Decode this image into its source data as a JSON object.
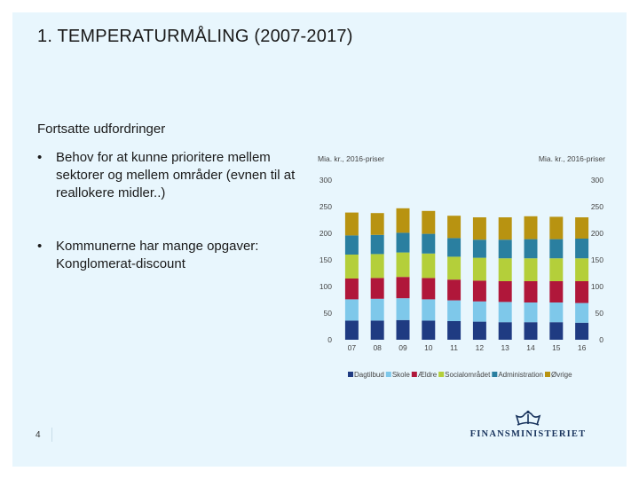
{
  "slide": {
    "title": "1. TEMPERATURMÅLING (2007-2017)",
    "subheading": "Fortsatte udfordringer",
    "bullets": [
      "Behov for at kunne prioritere mellem sektorer og mellem områder (evnen til at reallokere midler..)",
      "Kommunerne har mange opgaver: Konglomerat-discount"
    ],
    "page_number": "4",
    "logo_text": "FINANSMINISTERIET"
  },
  "chart_data": {
    "type": "bar",
    "stacked": true,
    "title": "",
    "ylabel_left": "Mia. kr., 2016-priser",
    "ylabel_right": "Mia. kr., 2016-priser",
    "xlabel": "",
    "ylim": [
      0,
      300
    ],
    "yticks": [
      0,
      50,
      100,
      150,
      200,
      250,
      300
    ],
    "categories": [
      "07",
      "08",
      "09",
      "10",
      "11",
      "12",
      "13",
      "14",
      "15",
      "16"
    ],
    "series": [
      {
        "name": "Dagtilbud",
        "color": "#1f3b82",
        "values": [
          36,
          36,
          37,
          36,
          35,
          34,
          33,
          33,
          33,
          32
        ]
      },
      {
        "name": "Skole",
        "color": "#7ec8ea",
        "values": [
          40,
          41,
          41,
          40,
          39,
          38,
          38,
          37,
          37,
          37
        ]
      },
      {
        "name": "Ældre",
        "color": "#b0173a",
        "values": [
          39,
          39,
          40,
          40,
          39,
          39,
          39,
          40,
          40,
          41
        ]
      },
      {
        "name": "Socialområdet",
        "color": "#b4cf3a",
        "values": [
          45,
          45,
          46,
          46,
          43,
          43,
          43,
          43,
          43,
          43
        ]
      },
      {
        "name": "Administration",
        "color": "#2a7fa0",
        "values": [
          36,
          36,
          37,
          37,
          35,
          34,
          35,
          36,
          36,
          37
        ]
      },
      {
        "name": "Øvrige",
        "color": "#b89311",
        "values": [
          43,
          41,
          46,
          43,
          42,
          42,
          42,
          43,
          42,
          40
        ]
      }
    ],
    "legend_position": "bottom",
    "grid": false
  }
}
